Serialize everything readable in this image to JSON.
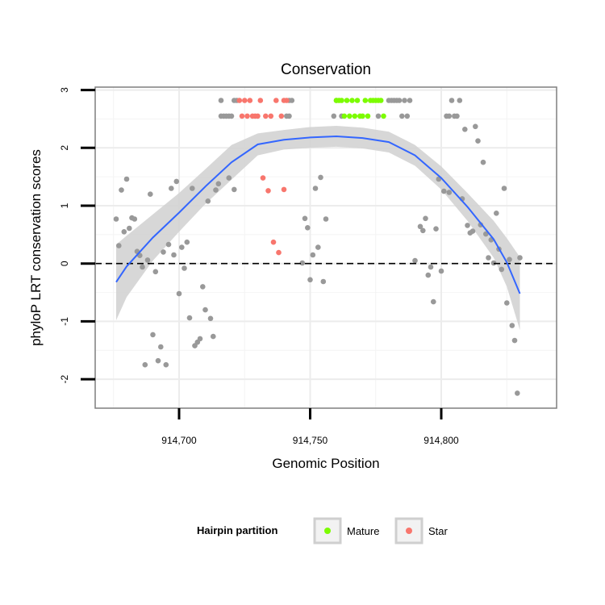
{
  "chart_data": {
    "type": "scatter",
    "title": "Conservation",
    "xlabel": "Genomic Position",
    "ylabel": "phyloP LRT conservation scores",
    "xlim": [
      914668,
      914844
    ],
    "ylim": [
      -2.5,
      3.05
    ],
    "x_ticks": [
      914700,
      914750,
      914800
    ],
    "x_tick_labels": [
      "914,700",
      "914,750",
      "914,800"
    ],
    "y_ticks": [
      -2,
      -1,
      0,
      1,
      2,
      3
    ],
    "y_tick_labels": [
      "-2",
      "-1",
      "0",
      "1",
      "2",
      "3"
    ],
    "reference_line": {
      "y": 0,
      "style": "dashed"
    },
    "legend": {
      "title": "Hairpin partition",
      "position": "bottom",
      "items": [
        {
          "label": "Mature",
          "color": "#7CFC00"
        },
        {
          "label": "Star",
          "color": "#F8766D"
        }
      ]
    },
    "colors": {
      "other": "#999999",
      "mature": "#7CFC00",
      "star": "#F8766D",
      "smooth": "#3366FF",
      "band": "#d3d3d3"
    },
    "series": [
      {
        "name": "Other",
        "points": [
          [
            914676,
            0.77
          ],
          [
            914677,
            0.31
          ],
          [
            914678,
            1.27
          ],
          [
            914679,
            0.55
          ],
          [
            914680,
            1.46
          ],
          [
            914681,
            0.61
          ],
          [
            914682,
            0.79
          ],
          [
            914683,
            0.77
          ],
          [
            914684,
            0.21
          ],
          [
            914685,
            0.14
          ],
          [
            914686,
            -0.06
          ],
          [
            914687,
            -1.75
          ],
          [
            914688,
            0.06
          ],
          [
            914689,
            1.2
          ],
          [
            914690,
            -1.23
          ],
          [
            914691,
            -0.14
          ],
          [
            914692,
            -1.68
          ],
          [
            914693,
            -1.44
          ],
          [
            914694,
            0.2
          ],
          [
            914695,
            -1.75
          ],
          [
            914696,
            0.33
          ],
          [
            914697,
            1.3
          ],
          [
            914698,
            0.15
          ],
          [
            914699,
            1.42
          ],
          [
            914700,
            -0.52
          ],
          [
            914701,
            0.28
          ],
          [
            914702,
            -0.08
          ],
          [
            914703,
            0.37
          ],
          [
            914704,
            -0.94
          ],
          [
            914705,
            1.3
          ],
          [
            914706,
            -1.42
          ],
          [
            914707,
            -1.36
          ],
          [
            914708,
            -1.3
          ],
          [
            914709,
            -0.4
          ],
          [
            914710,
            -0.8
          ],
          [
            914711,
            1.08
          ],
          [
            914712,
            -0.95
          ],
          [
            914713,
            -1.26
          ],
          [
            914714,
            1.27
          ],
          [
            914715,
            1.38
          ],
          [
            914716,
            2.55
          ],
          [
            914716,
            2.82
          ],
          [
            914717,
            2.55
          ],
          [
            914718,
            2.55
          ],
          [
            914719,
            1.48
          ],
          [
            914719,
            2.55
          ],
          [
            914720,
            2.55
          ],
          [
            914721,
            1.28
          ],
          [
            914721,
            2.82
          ],
          [
            914722,
            2.82
          ],
          [
            914741,
            2.55
          ],
          [
            914742,
            2.55
          ],
          [
            914742,
            2.82
          ],
          [
            914743,
            2.82
          ],
          [
            914747,
            0.01
          ],
          [
            914748,
            0.78
          ],
          [
            914749,
            0.62
          ],
          [
            914750,
            -0.28
          ],
          [
            914751,
            0.15
          ],
          [
            914752,
            1.3
          ],
          [
            914753,
            0.28
          ],
          [
            914754,
            1.49
          ],
          [
            914755,
            -0.31
          ],
          [
            914756,
            0.77
          ],
          [
            914759,
            2.55
          ],
          [
            914760,
            2.82
          ],
          [
            914762,
            2.55
          ],
          [
            914776,
            2.55
          ],
          [
            914780,
            2.82
          ],
          [
            914781,
            2.82
          ],
          [
            914782,
            2.82
          ],
          [
            914783,
            2.82
          ],
          [
            914784,
            2.82
          ],
          [
            914785,
            2.55
          ],
          [
            914786,
            2.82
          ],
          [
            914787,
            2.55
          ],
          [
            914788,
            2.82
          ],
          [
            914790,
            0.05
          ],
          [
            914792,
            0.64
          ],
          [
            914793,
            0.57
          ],
          [
            914794,
            0.78
          ],
          [
            914795,
            -0.2
          ],
          [
            914796,
            -0.06
          ],
          [
            914797,
            -0.66
          ],
          [
            914798,
            0.6
          ],
          [
            914799,
            1.46
          ],
          [
            914800,
            -0.13
          ],
          [
            914801,
            1.25
          ],
          [
            914802,
            2.55
          ],
          [
            914803,
            1.23
          ],
          [
            914803,
            2.55
          ],
          [
            914804,
            2.82
          ],
          [
            914805,
            2.55
          ],
          [
            914806,
            2.55
          ],
          [
            914807,
            2.82
          ],
          [
            914808,
            1.12
          ],
          [
            914809,
            2.32
          ],
          [
            914810,
            0.66
          ],
          [
            914811,
            0.53
          ],
          [
            914812,
            0.56
          ],
          [
            914813,
            2.37
          ],
          [
            914814,
            2.12
          ],
          [
            914815,
            0.67
          ],
          [
            914816,
            1.75
          ],
          [
            914817,
            0.51
          ],
          [
            914818,
            0.1
          ],
          [
            914819,
            0.41
          ],
          [
            914820,
            0.01
          ],
          [
            914821,
            0.87
          ],
          [
            914822,
            0.25
          ],
          [
            914823,
            -0.1
          ],
          [
            914824,
            1.3
          ],
          [
            914825,
            -0.68
          ],
          [
            914826,
            0.07
          ],
          [
            914827,
            -1.07
          ],
          [
            914828,
            -1.33
          ],
          [
            914829,
            -2.24
          ],
          [
            914830,
            0.1
          ]
        ]
      },
      {
        "name": "Star",
        "points": [
          [
            914723,
            2.82
          ],
          [
            914724,
            2.55
          ],
          [
            914725,
            2.82
          ],
          [
            914726,
            2.55
          ],
          [
            914727,
            2.82
          ],
          [
            914728,
            2.55
          ],
          [
            914729,
            2.55
          ],
          [
            914730,
            2.55
          ],
          [
            914731,
            2.82
          ],
          [
            914732,
            1.48
          ],
          [
            914733,
            2.55
          ],
          [
            914734,
            1.26
          ],
          [
            914735,
            2.55
          ],
          [
            914736,
            0.37
          ],
          [
            914737,
            2.82
          ],
          [
            914738,
            0.19
          ],
          [
            914739,
            2.55
          ],
          [
            914740,
            1.28
          ],
          [
            914740,
            2.82
          ],
          [
            914741,
            2.82
          ]
        ]
      },
      {
        "name": "Mature",
        "points": [
          [
            914760,
            2.82
          ],
          [
            914761,
            2.82
          ],
          [
            914762,
            2.82
          ],
          [
            914763,
            2.55
          ],
          [
            914764,
            2.82
          ],
          [
            914765,
            2.55
          ],
          [
            914766,
            2.82
          ],
          [
            914767,
            2.55
          ],
          [
            914768,
            2.82
          ],
          [
            914769,
            2.55
          ],
          [
            914770,
            2.55
          ],
          [
            914771,
            2.82
          ],
          [
            914772,
            2.55
          ],
          [
            914773,
            2.82
          ],
          [
            914774,
            2.82
          ],
          [
            914775,
            2.82
          ],
          [
            914776,
            2.82
          ],
          [
            914777,
            2.82
          ],
          [
            914778,
            2.55
          ]
        ]
      }
    ],
    "smooth": {
      "x": [
        914676,
        914680,
        914690,
        914700,
        914710,
        914720,
        914730,
        914740,
        914750,
        914760,
        914770,
        914780,
        914790,
        914800,
        914810,
        914820,
        914825,
        914830
      ],
      "y": [
        -0.32,
        -0.05,
        0.45,
        0.88,
        1.33,
        1.75,
        2.06,
        2.14,
        2.18,
        2.2,
        2.17,
        2.1,
        1.87,
        1.48,
        0.98,
        0.42,
        0.02,
        -0.52
      ],
      "lower": [
        -0.98,
        -0.58,
        0.05,
        0.55,
        1.03,
        1.45,
        1.87,
        1.97,
        2.0,
        2.02,
        1.99,
        1.92,
        1.69,
        1.28,
        0.74,
        0.1,
        -0.4,
        -1.15
      ],
      "upper": [
        0.33,
        0.48,
        0.85,
        1.22,
        1.63,
        2.05,
        2.25,
        2.31,
        2.36,
        2.38,
        2.35,
        2.28,
        2.05,
        1.68,
        1.22,
        0.74,
        0.44,
        0.11
      ]
    }
  }
}
